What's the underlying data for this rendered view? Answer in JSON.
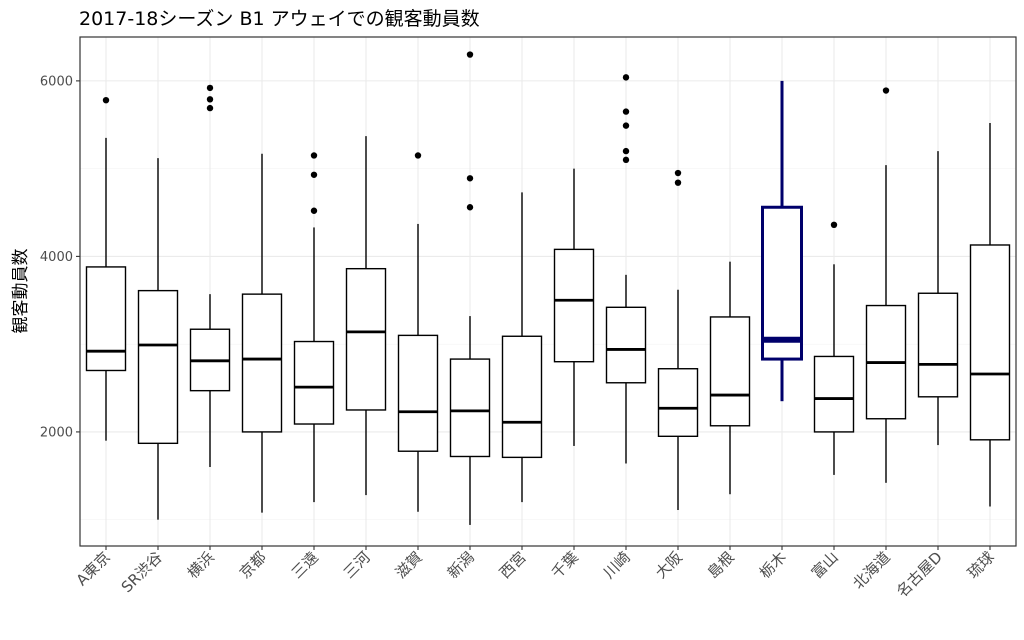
{
  "chart_data": {
    "type": "boxplot",
    "title": "2017-18シーズン B1 アウェイでの観客動員数",
    "xlabel": "",
    "ylabel": "観客動員数",
    "ylim": [
      700,
      6500
    ],
    "yticks": [
      2000,
      4000,
      6000
    ],
    "grid": true,
    "highlight_color": "#00006b",
    "categories": [
      "A東京",
      "SR渋谷",
      "横浜",
      "京都",
      "三遠",
      "三河",
      "滋賀",
      "新潟",
      "西宮",
      "千葉",
      "川崎",
      "大阪",
      "島根",
      "栃木",
      "富山",
      "北海道",
      "名古屋D",
      "琉球"
    ],
    "boxes": [
      {
        "name": "A東京",
        "min": 1900,
        "q1": 2700,
        "median": 2920,
        "q3": 3880,
        "max": 5350,
        "outliers": [
          5780
        ],
        "highlight": false
      },
      {
        "name": "SR渋谷",
        "min": 1000,
        "q1": 1870,
        "median": 2990,
        "q3": 3610,
        "max": 5120,
        "outliers": [],
        "highlight": false
      },
      {
        "name": "横浜",
        "min": 1600,
        "q1": 2470,
        "median": 2810,
        "q3": 3170,
        "max": 3570,
        "outliers": [
          5690,
          5790,
          5920
        ],
        "highlight": false
      },
      {
        "name": "京都",
        "min": 1080,
        "q1": 2000,
        "median": 2830,
        "q3": 3570,
        "max": 5170,
        "outliers": [],
        "highlight": false
      },
      {
        "name": "三遠",
        "min": 1200,
        "q1": 2090,
        "median": 2510,
        "q3": 3030,
        "max": 4330,
        "outliers": [
          4520,
          4930,
          5150
        ],
        "highlight": false
      },
      {
        "name": "三河",
        "min": 1280,
        "q1": 2250,
        "median": 3140,
        "q3": 3860,
        "max": 5370,
        "outliers": [],
        "highlight": false
      },
      {
        "name": "滋賀",
        "min": 1090,
        "q1": 1780,
        "median": 2230,
        "q3": 3100,
        "max": 4370,
        "outliers": [
          5150
        ],
        "highlight": false
      },
      {
        "name": "新潟",
        "min": 940,
        "q1": 1720,
        "median": 2240,
        "q3": 2830,
        "max": 3320,
        "outliers": [
          4560,
          4890,
          6300
        ],
        "highlight": false
      },
      {
        "name": "西宮",
        "min": 1200,
        "q1": 1710,
        "median": 2110,
        "q3": 3090,
        "max": 4730,
        "outliers": [],
        "highlight": false
      },
      {
        "name": "千葉",
        "min": 1840,
        "q1": 2800,
        "median": 3500,
        "q3": 4080,
        "max": 5000,
        "outliers": [],
        "highlight": false
      },
      {
        "name": "川崎",
        "min": 1640,
        "q1": 2560,
        "median": 2940,
        "q3": 3420,
        "max": 3790,
        "outliers": [
          5100,
          5200,
          5490,
          5650,
          6040
        ],
        "highlight": false
      },
      {
        "name": "大阪",
        "min": 1110,
        "q1": 1950,
        "median": 2270,
        "q3": 2720,
        "max": 3620,
        "outliers": [
          4840,
          4950
        ],
        "highlight": false
      },
      {
        "name": "島根",
        "min": 1290,
        "q1": 2070,
        "median": 2420,
        "q3": 3310,
        "max": 3940,
        "outliers": [],
        "highlight": false
      },
      {
        "name": "栃木",
        "min": 2350,
        "q1": 2830,
        "median": 3050,
        "q3": 4560,
        "max": 6000,
        "outliers": [],
        "highlight": true
      },
      {
        "name": "富山",
        "min": 1510,
        "q1": 2000,
        "median": 2380,
        "q3": 2860,
        "max": 3910,
        "outliers": [
          4360
        ],
        "highlight": false
      },
      {
        "name": "北海道",
        "min": 1420,
        "q1": 2150,
        "median": 2790,
        "q3": 3440,
        "max": 5040,
        "outliers": [
          5890
        ],
        "highlight": false
      },
      {
        "name": "名古屋D",
        "min": 1850,
        "q1": 2400,
        "median": 2770,
        "q3": 3580,
        "max": 5200,
        "outliers": [],
        "highlight": false
      },
      {
        "name": "琉球",
        "min": 1150,
        "q1": 1910,
        "median": 2660,
        "q3": 4130,
        "max": 5520,
        "outliers": [],
        "highlight": false
      }
    ]
  }
}
